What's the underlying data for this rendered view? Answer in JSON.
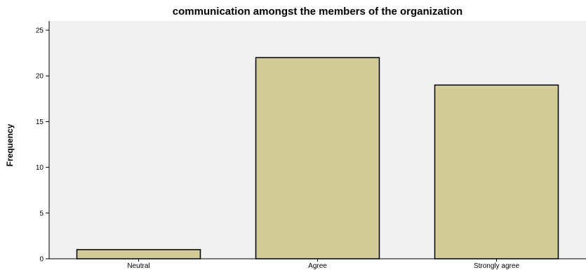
{
  "chart_data": {
    "type": "bar",
    "title": "communication amongst the members of the organization",
    "xlabel": "",
    "ylabel": "Frequency",
    "categories": [
      "Neutral",
      "Agree",
      "Strongly agree"
    ],
    "values": [
      1,
      22,
      19
    ],
    "ylim": [
      0,
      26
    ],
    "yticks": [
      0,
      5,
      10,
      15,
      20,
      25
    ],
    "grid": false,
    "legend": "none",
    "colors": {
      "bar_fill": "#d4cc98",
      "bar_stroke": "#000000",
      "plot_background": "#f0f0f0",
      "axis": "#000000"
    }
  }
}
